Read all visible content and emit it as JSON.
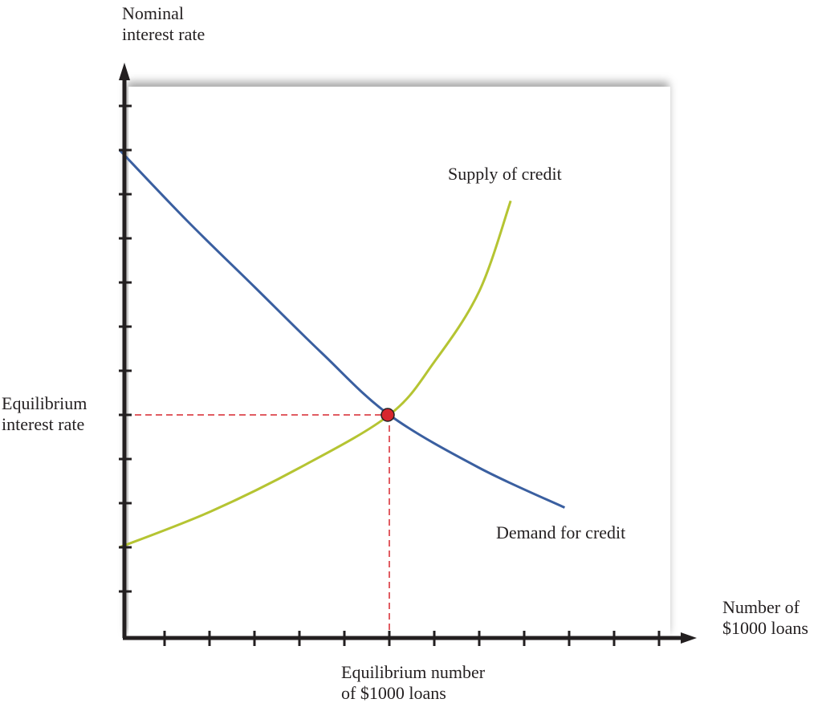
{
  "chart_data": {
    "type": "line",
    "title": "",
    "ylabel": "Nominal interest rate",
    "xlabel": "Number of $1000 loans",
    "xlim": [
      0,
      12.8
    ],
    "ylim": [
      0,
      13
    ],
    "x_ticks": [
      1,
      2,
      3,
      4,
      5,
      6,
      7,
      8,
      9,
      10,
      11,
      12
    ],
    "y_ticks": [
      1,
      2,
      3,
      4,
      5,
      6,
      7,
      8,
      9,
      10,
      11,
      12
    ],
    "tick_labels_shown": false,
    "grid": false,
    "series": [
      {
        "name": "Demand for credit",
        "color": "#3a5fa0",
        "points": [
          [
            0,
            11
          ],
          [
            1.5,
            9.4
          ],
          [
            3,
            7.9
          ],
          [
            4.5,
            6.4
          ],
          [
            6,
            5
          ],
          [
            8,
            3.8
          ],
          [
            9.9,
            2.9
          ]
        ]
      },
      {
        "name": "Supply of credit",
        "color": "#b5c432",
        "points": [
          [
            0,
            2
          ],
          [
            2,
            2.8
          ],
          [
            4,
            3.8
          ],
          [
            6,
            5
          ],
          [
            7,
            6.2
          ],
          [
            8,
            7.8
          ],
          [
            8.7,
            9.85
          ]
        ]
      }
    ],
    "equilibrium": {
      "x": 6,
      "y": 5,
      "color": "#d7262e"
    },
    "annotations": {
      "equilibrium_rate": "Equilibrium interest rate",
      "equilibrium_quantity": "Equilibrium number of $1000 loans"
    }
  },
  "labels": {
    "y_axis_line1": "Nominal",
    "y_axis_line2": "interest rate",
    "x_axis_line1": "Number of",
    "x_axis_line2": "$1000 loans",
    "eq_rate_line1": "Equilibrium",
    "eq_rate_line2": "interest rate",
    "eq_qty_line1": "Equilibrium number",
    "eq_qty_line2": "of $1000 loans",
    "supply": "Supply of credit",
    "demand": "Demand for credit"
  }
}
